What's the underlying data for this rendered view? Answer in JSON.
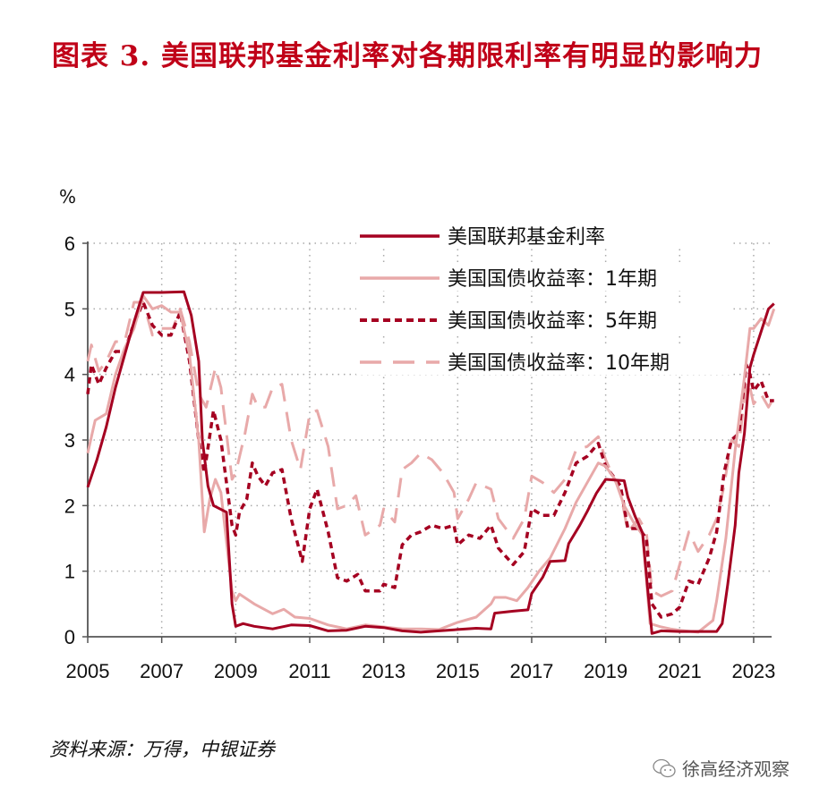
{
  "title": "图表 3. 美国联邦基金利率对各期限利率有明显的影响力",
  "source": "资料来源：万得，中银证券",
  "watermark": {
    "text": "徐高经济观察",
    "icon": "wechat-icon"
  },
  "chart_data": {
    "type": "line",
    "ylabel": "%",
    "ylim": [
      0,
      6
    ],
    "xlim": [
      2005,
      2023.5
    ],
    "yticks": [
      "0",
      "1",
      "2",
      "3",
      "4",
      "5",
      "6"
    ],
    "xticks": [
      "2005",
      "2007",
      "2009",
      "2011",
      "2013",
      "2015",
      "2017",
      "2019",
      "2021",
      "2023"
    ],
    "grid": true,
    "legend_position": "top-right",
    "series": [
      {
        "name": "美国联邦基金利率",
        "color": "#a50021",
        "style": "solid",
        "x": [
          2005.0,
          2005.25,
          2005.5,
          2005.75,
          2006.0,
          2006.25,
          2006.5,
          2007.0,
          2007.6,
          2007.8,
          2008.0,
          2008.1,
          2008.25,
          2008.4,
          2008.75,
          2008.9,
          2009.0,
          2009.2,
          2009.5,
          2010.0,
          2010.5,
          2011.0,
          2011.5,
          2012.0,
          2012.5,
          2013.0,
          2013.5,
          2014.0,
          2014.5,
          2015.0,
          2015.5,
          2015.9,
          2016.0,
          2016.5,
          2016.9,
          2017.0,
          2017.3,
          2017.5,
          2017.9,
          2018.0,
          2018.3,
          2018.5,
          2018.75,
          2019.0,
          2019.5,
          2019.6,
          2019.8,
          2020.0,
          2020.15,
          2020.25,
          2020.5,
          2021.0,
          2021.5,
          2022.0,
          2022.15,
          2022.3,
          2022.5,
          2022.6,
          2022.75,
          2022.9,
          2023.0,
          2023.2,
          2023.4,
          2023.55
        ],
        "y": [
          2.28,
          2.7,
          3.2,
          3.8,
          4.3,
          4.8,
          5.25,
          5.25,
          5.26,
          4.9,
          4.2,
          3.0,
          2.3,
          2.0,
          1.9,
          0.5,
          0.16,
          0.2,
          0.16,
          0.12,
          0.18,
          0.17,
          0.09,
          0.1,
          0.16,
          0.14,
          0.09,
          0.07,
          0.09,
          0.11,
          0.13,
          0.12,
          0.36,
          0.39,
          0.41,
          0.66,
          0.91,
          1.15,
          1.16,
          1.42,
          1.7,
          1.91,
          2.19,
          2.4,
          2.38,
          2.13,
          1.83,
          1.58,
          0.65,
          0.05,
          0.09,
          0.08,
          0.08,
          0.08,
          0.2,
          0.8,
          1.7,
          2.5,
          3.1,
          4.1,
          4.3,
          4.65,
          5.0,
          5.08
        ]
      },
      {
        "name": "美国国债收益率：1年期",
        "color": "#e8a9a9",
        "style": "solid",
        "x": [
          2005.0,
          2005.2,
          2005.5,
          2005.75,
          2006.0,
          2006.25,
          2006.5,
          2006.75,
          2007.0,
          2007.25,
          2007.5,
          2007.75,
          2008.0,
          2008.15,
          2008.3,
          2008.45,
          2008.6,
          2008.9,
          2009.0,
          2009.1,
          2009.5,
          2010.0,
          2010.3,
          2010.6,
          2011.0,
          2011.5,
          2012.0,
          2012.5,
          2013.0,
          2013.5,
          2014.0,
          2014.5,
          2015.0,
          2015.5,
          2015.9,
          2016.0,
          2016.3,
          2016.6,
          2016.9,
          2017.2,
          2017.5,
          2017.9,
          2018.2,
          2018.5,
          2018.8,
          2019.0,
          2019.25,
          2019.5,
          2019.75,
          2020.0,
          2020.2,
          2020.5,
          2020.75,
          2021.0,
          2021.5,
          2021.9,
          2022.0,
          2022.25,
          2022.5,
          2022.75,
          2022.9,
          2023.0,
          2023.2,
          2023.4,
          2023.55
        ],
        "y": [
          2.8,
          3.3,
          3.4,
          4.0,
          4.4,
          4.7,
          5.2,
          5.0,
          5.05,
          4.95,
          4.95,
          4.3,
          3.0,
          1.6,
          2.1,
          2.4,
          2.2,
          0.7,
          0.55,
          0.65,
          0.5,
          0.35,
          0.42,
          0.3,
          0.28,
          0.18,
          0.12,
          0.18,
          0.15,
          0.12,
          0.12,
          0.11,
          0.22,
          0.3,
          0.5,
          0.6,
          0.6,
          0.55,
          0.75,
          1.0,
          1.2,
          1.65,
          2.05,
          2.35,
          2.65,
          2.6,
          2.4,
          2.0,
          1.75,
          1.55,
          0.2,
          0.15,
          0.12,
          0.1,
          0.07,
          0.25,
          0.55,
          1.5,
          2.85,
          3.95,
          4.7,
          4.7,
          4.85,
          4.75,
          5.0
        ]
      },
      {
        "name": "美国国债收益率：5年期",
        "color": "#a50021",
        "style": "dotted",
        "x": [
          2005.0,
          2005.1,
          2005.3,
          2005.5,
          2005.75,
          2006.0,
          2006.2,
          2006.5,
          2006.75,
          2007.0,
          2007.25,
          2007.5,
          2007.75,
          2008.0,
          2008.15,
          2008.4,
          2008.6,
          2008.9,
          2009.0,
          2009.1,
          2009.3,
          2009.45,
          2009.6,
          2009.8,
          2010.0,
          2010.25,
          2010.5,
          2010.8,
          2011.0,
          2011.2,
          2011.5,
          2011.75,
          2012.0,
          2012.3,
          2012.5,
          2012.9,
          2013.0,
          2013.3,
          2013.5,
          2013.75,
          2014.0,
          2014.3,
          2014.6,
          2014.9,
          2015.0,
          2015.3,
          2015.6,
          2015.9,
          2016.1,
          2016.5,
          2016.8,
          2017.0,
          2017.3,
          2017.6,
          2017.9,
          2018.2,
          2018.5,
          2018.8,
          2019.0,
          2019.4,
          2019.6,
          2019.9,
          2020.1,
          2020.25,
          2020.5,
          2020.8,
          2021.0,
          2021.25,
          2021.5,
          2021.8,
          2022.0,
          2022.2,
          2022.4,
          2022.6,
          2022.8,
          2022.9,
          2023.0,
          2023.2,
          2023.4,
          2023.55
        ],
        "y": [
          3.7,
          4.15,
          3.85,
          4.1,
          4.35,
          4.35,
          4.7,
          5.1,
          4.75,
          4.6,
          4.6,
          4.95,
          4.2,
          3.0,
          2.5,
          3.45,
          3.0,
          1.7,
          1.55,
          1.9,
          2.1,
          2.65,
          2.45,
          2.3,
          2.5,
          2.55,
          1.8,
          1.15,
          1.95,
          2.25,
          1.6,
          0.9,
          0.85,
          0.95,
          0.7,
          0.7,
          0.8,
          0.75,
          1.4,
          1.55,
          1.6,
          1.7,
          1.65,
          1.7,
          1.4,
          1.55,
          1.5,
          1.7,
          1.35,
          1.1,
          1.3,
          1.95,
          1.85,
          1.85,
          2.2,
          2.65,
          2.75,
          2.95,
          2.6,
          2.3,
          1.65,
          1.65,
          1.5,
          0.5,
          0.3,
          0.35,
          0.45,
          0.85,
          0.8,
          1.2,
          1.6,
          2.5,
          3.0,
          3.1,
          4.15,
          4.0,
          3.75,
          3.9,
          3.6,
          3.6
        ]
      },
      {
        "name": "美国国债收益率：10年期",
        "color": "#e8a9a9",
        "style": "dashed",
        "x": [
          2005.0,
          2005.1,
          2005.3,
          2005.5,
          2005.75,
          2006.0,
          2006.25,
          2006.5,
          2006.75,
          2007.0,
          2007.3,
          2007.5,
          2007.75,
          2008.0,
          2008.2,
          2008.45,
          2008.6,
          2008.9,
          2009.0,
          2009.25,
          2009.45,
          2009.6,
          2009.8,
          2010.0,
          2010.25,
          2010.5,
          2010.75,
          2011.0,
          2011.2,
          2011.5,
          2011.75,
          2012.0,
          2012.25,
          2012.5,
          2012.9,
          2013.0,
          2013.3,
          2013.5,
          2013.75,
          2014.0,
          2014.3,
          2014.6,
          2014.9,
          2015.0,
          2015.3,
          2015.5,
          2015.9,
          2016.1,
          2016.5,
          2016.8,
          2017.0,
          2017.3,
          2017.6,
          2017.9,
          2018.2,
          2018.5,
          2018.8,
          2019.0,
          2019.4,
          2019.6,
          2019.9,
          2020.1,
          2020.25,
          2020.5,
          2020.8,
          2021.0,
          2021.25,
          2021.5,
          2021.8,
          2022.0,
          2022.2,
          2022.4,
          2022.6,
          2022.8,
          2022.9,
          2023.0,
          2023.2,
          2023.4,
          2023.55
        ],
        "y": [
          4.2,
          4.45,
          4.05,
          4.2,
          4.5,
          4.5,
          5.1,
          5.1,
          4.6,
          4.7,
          4.7,
          5.0,
          4.5,
          3.7,
          3.5,
          4.1,
          3.8,
          2.4,
          2.5,
          3.1,
          3.7,
          3.5,
          3.5,
          3.8,
          3.85,
          3.0,
          2.55,
          3.4,
          3.45,
          2.9,
          1.95,
          2.0,
          2.15,
          1.55,
          1.7,
          1.95,
          1.75,
          2.55,
          2.65,
          2.8,
          2.7,
          2.5,
          2.2,
          1.8,
          2.1,
          2.35,
          2.25,
          1.8,
          1.5,
          1.8,
          2.45,
          2.35,
          2.2,
          2.4,
          2.85,
          2.9,
          3.05,
          2.7,
          2.2,
          1.6,
          1.8,
          1.6,
          0.7,
          0.62,
          0.7,
          1.1,
          1.6,
          1.3,
          1.55,
          1.8,
          2.3,
          3.0,
          2.9,
          3.9,
          3.8,
          3.55,
          3.7,
          3.5,
          3.65
        ]
      }
    ]
  }
}
